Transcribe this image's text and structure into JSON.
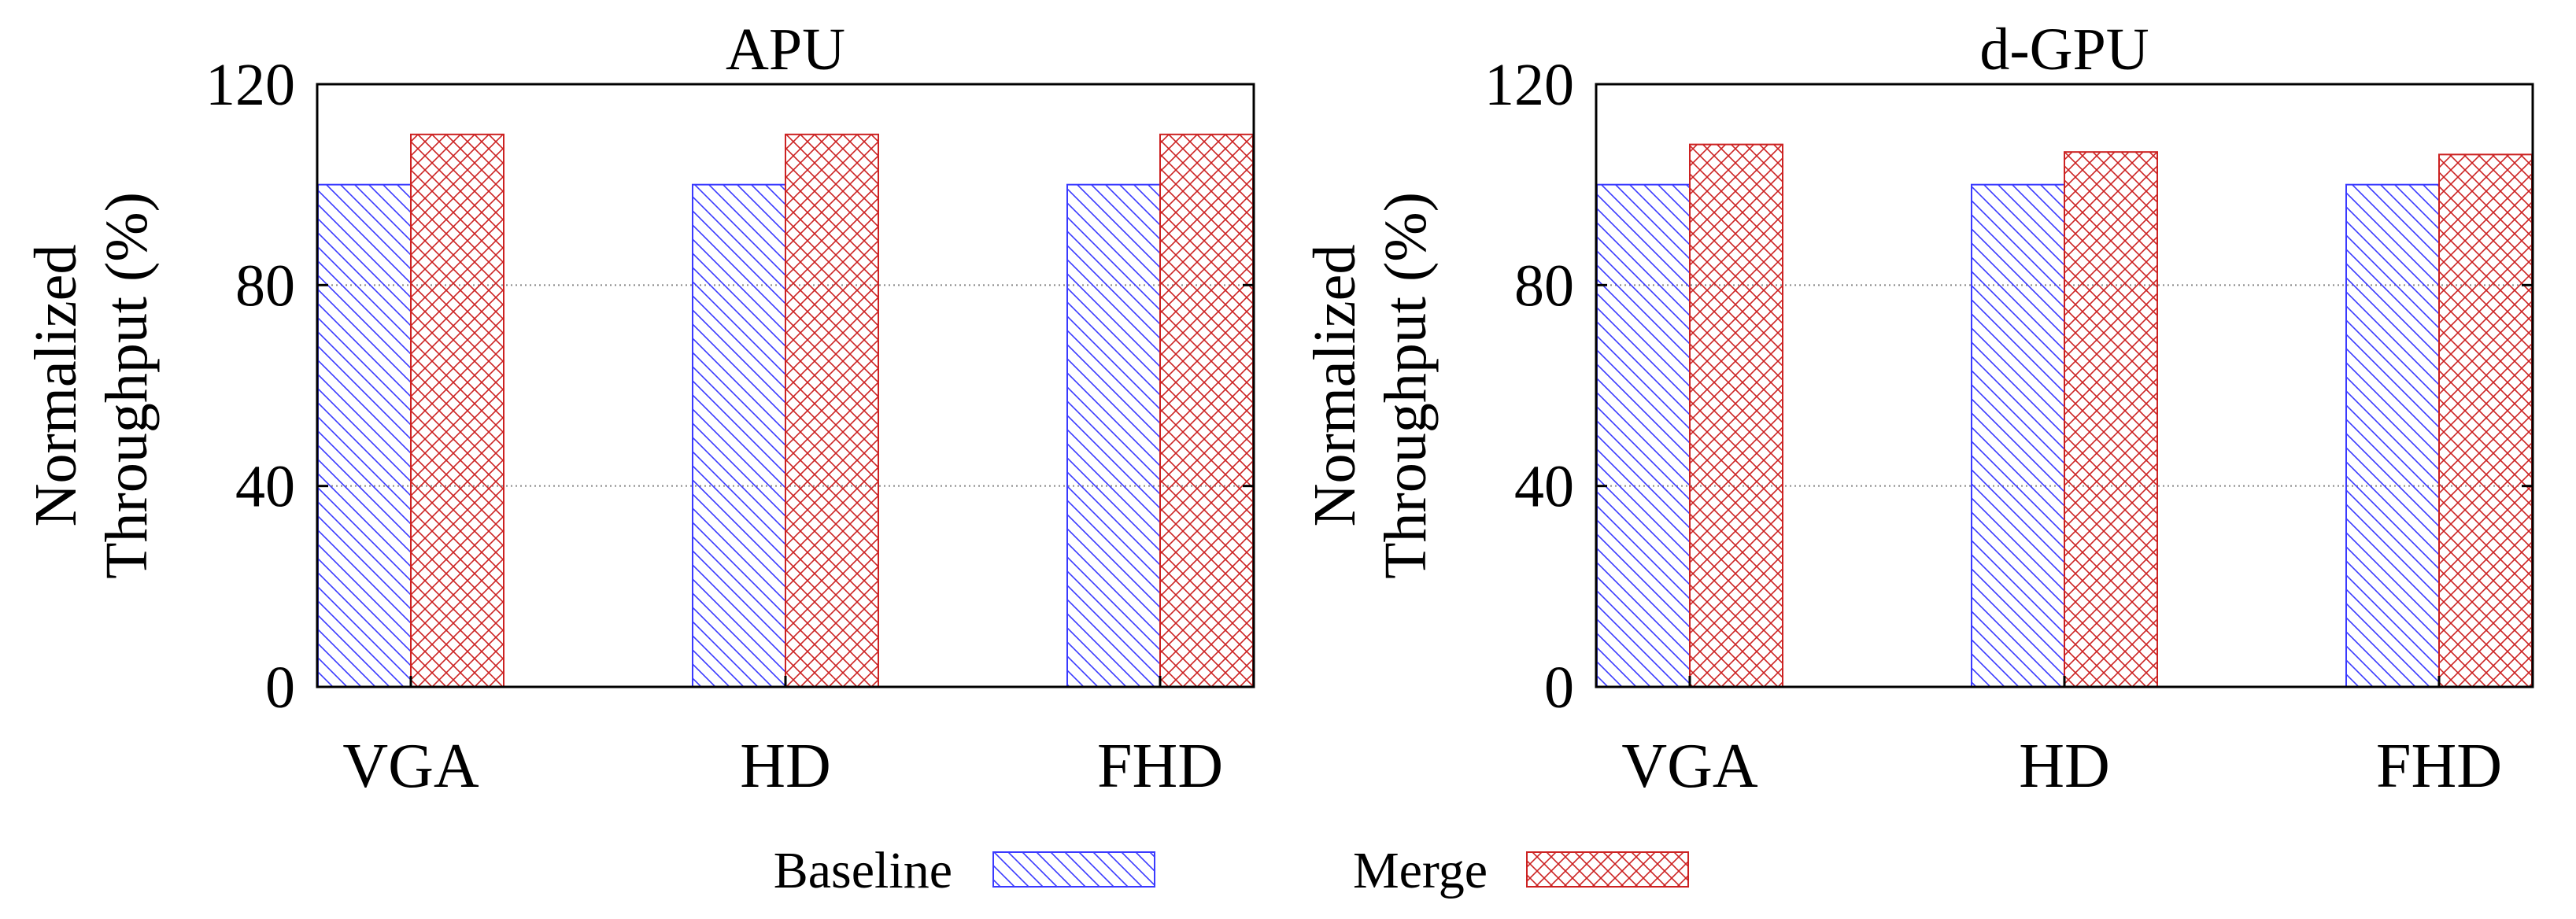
{
  "colors": {
    "baseline": "#3a3aff",
    "merge": "#cc2222",
    "grid": "#888888",
    "axis": "#000000"
  },
  "legend": [
    {
      "label": "Baseline",
      "series": "baseline",
      "pattern": "diag"
    },
    {
      "label": "Merge",
      "series": "merge",
      "pattern": "cross"
    }
  ],
  "chart_data": [
    {
      "type": "bar",
      "title": "APU",
      "ylabel": [
        "Normalized",
        "Throughput (%)"
      ],
      "xlabel": "",
      "categories": [
        "VGA",
        "HD",
        "FHD"
      ],
      "ylim": [
        0,
        120
      ],
      "yticks": [
        0,
        40,
        80,
        120
      ],
      "grid": true,
      "series": [
        {
          "name": "Baseline",
          "values": [
            100,
            100,
            100
          ]
        },
        {
          "name": "Merge",
          "values": [
            110,
            110,
            110
          ]
        }
      ]
    },
    {
      "type": "bar",
      "title": "d-GPU",
      "ylabel": [
        "Normalized",
        "Throughput (%)"
      ],
      "xlabel": "",
      "categories": [
        "VGA",
        "HD",
        "FHD"
      ],
      "ylim": [
        0,
        120
      ],
      "yticks": [
        0,
        40,
        80,
        120
      ],
      "grid": true,
      "series": [
        {
          "name": "Baseline",
          "values": [
            100,
            100,
            100
          ]
        },
        {
          "name": "Merge",
          "values": [
            108,
            106.5,
            106
          ]
        }
      ]
    }
  ]
}
